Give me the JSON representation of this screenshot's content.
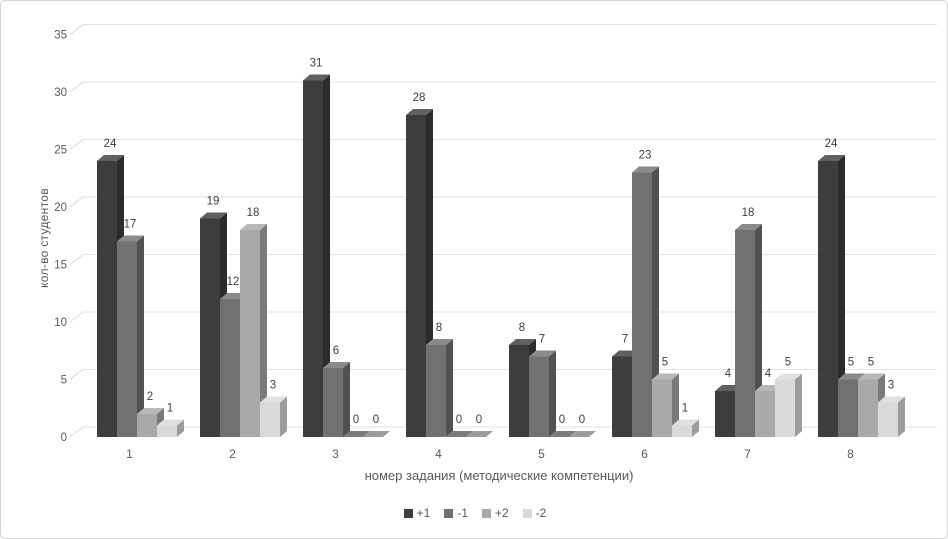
{
  "chart_data": {
    "type": "bar",
    "style": "3d-clustered-column",
    "title": "",
    "categories": [
      "1",
      "2",
      "3",
      "4",
      "5",
      "6",
      "7",
      "8"
    ],
    "series": [
      {
        "name": "+1",
        "color": "#3d3d3d",
        "values": [
          24,
          19,
          31,
          28,
          8,
          7,
          4,
          24
        ]
      },
      {
        "name": "-1",
        "color": "#717171",
        "values": [
          17,
          12,
          6,
          8,
          7,
          23,
          18,
          5
        ]
      },
      {
        "name": "+2",
        "color": "#a9a9a9",
        "values": [
          2,
          18,
          0,
          0,
          0,
          5,
          4,
          5
        ]
      },
      {
        "name": "-2",
        "color": "#d9d9d9",
        "values": [
          1,
          3,
          0,
          0,
          0,
          1,
          5,
          3
        ]
      }
    ],
    "xlabel": "номер задания (методические компетенции)",
    "ylabel": "кол-во студентов",
    "ylim": [
      0,
      35
    ],
    "ytick_step": 5,
    "yticks": [
      0,
      5,
      10,
      15,
      20,
      25,
      30,
      35
    ],
    "grid": true,
    "legend_position": "bottom",
    "value_labels": true
  },
  "colors": {
    "gridline": "#e2e2e2",
    "tick_connector": "#d9d9d9",
    "axis_text": "#595959",
    "value_text": "#3f3f3f",
    "border": "#d4d4d4"
  }
}
